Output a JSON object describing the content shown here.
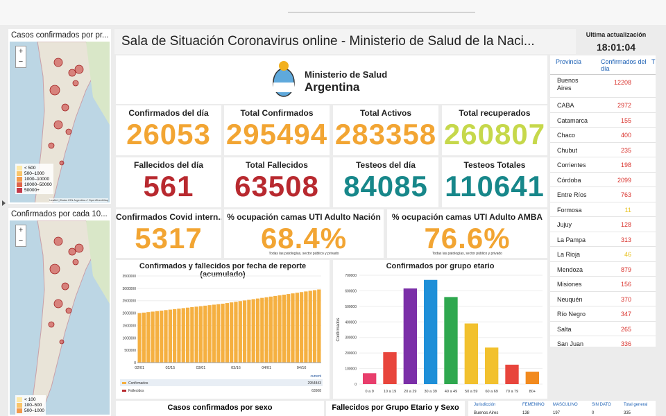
{
  "header": {
    "title": "Sala de Situación Coronavirus online - Ministerio de Salud de la Naci...",
    "update_label": "Ultima actualización",
    "update_time": "18:01:04"
  },
  "logo": {
    "line1": "Ministerio de Salud",
    "line2": "Argentina"
  },
  "kpis": [
    {
      "label": "Confirmados del día",
      "value": 26053,
      "color": "#f2a533"
    },
    {
      "label": "Total Confirmados",
      "value": 295494,
      "color": "#f2a533"
    },
    {
      "label": "Total Activos",
      "value": 283358,
      "color": "#f2a533"
    },
    {
      "label": "Total recuperados",
      "value": 260807,
      "color": "#c6d84b"
    },
    {
      "label": "Fallecidos del día",
      "value": 561,
      "color": "#b8292f"
    },
    {
      "label": "Total Fallecidos",
      "value": 63508,
      "color": "#b8292f"
    },
    {
      "label": "Testeos del día",
      "value": 84085,
      "color": "#17878a"
    },
    {
      "label": "Testeos Totales",
      "value": 110641,
      "color": "#17878a"
    }
  ],
  "kpis_row3": [
    {
      "label": "Confirmados Covid intern...",
      "value": 5317,
      "color": "#f2a533"
    },
    {
      "label": "% ocupación camas UTI Adulto Nación",
      "value": "68.4%",
      "note": "Todas las patologías, sector público y privado",
      "color": "#f2a533"
    },
    {
      "label": "% ocupación camas UTI Adulto AMBA",
      "value": "76.6%",
      "note": "Todas las patologías, sector público y privado",
      "color": "#f2a533"
    }
  ],
  "maps": [
    {
      "title": "Casos confirmados por pr...",
      "legend": [
        "< 500",
        "500–1000",
        "1000–10000",
        "10000–50000",
        "50000+"
      ],
      "attribution": "Leaflet | Datos IGN Argentina // OpenStreetMap"
    },
    {
      "title": "Confirmados por cada 10...",
      "legend": [
        "< 100",
        "100–500",
        "500–1000"
      ]
    }
  ],
  "cumulative_chart": {
    "type": "bar",
    "title": "Confirmados y fallecidos por fecha de reporte (acumulado)",
    "categories": [
      "02/01",
      null,
      null,
      null,
      null,
      null,
      null,
      "02/15",
      null,
      null,
      null,
      null,
      null,
      null,
      "03/01",
      null,
      null,
      null,
      null,
      null,
      null,
      null,
      "03/16",
      null,
      null,
      null,
      null,
      null,
      null,
      "04/01",
      null,
      null,
      null,
      null,
      null,
      null,
      null,
      "04/16",
      null,
      null,
      null,
      null
    ],
    "values": [
      2000000,
      2020000,
      2040000,
      2060000,
      2080000,
      2100000,
      2120000,
      2140000,
      2160000,
      2180000,
      2200000,
      2220000,
      2240000,
      2260000,
      2280000,
      2300000,
      2320000,
      2340000,
      2360000,
      2380000,
      2406000,
      2432000,
      2458000,
      2484000,
      2510000,
      2536000,
      2562000,
      2588000,
      2614000,
      2640000,
      2666000,
      2692000,
      2718000,
      2744000,
      2770000,
      2796000,
      2822000,
      2848000,
      2874000,
      2900000,
      2926000,
      2954000
    ],
    "color": "#f5b041",
    "ylim": [
      0,
      3500000
    ],
    "yticks": [
      0,
      500000,
      1000000,
      1500000,
      2000000,
      2500000,
      3000000,
      3500000
    ],
    "legend_header": "current",
    "legend": [
      {
        "name": "Confirmados",
        "value": 2954843,
        "color": "#f5b041"
      },
      {
        "name": "Fallecidos",
        "value": 63508,
        "color": "#b8292f"
      }
    ]
  },
  "age_chart": {
    "type": "bar",
    "title": "Confirmados por grupo etario",
    "y_label": "Confirmados",
    "categories": [
      "0 a 9",
      "10 a 19",
      "20 a 29",
      "30 a 39",
      "40 a 49",
      "50 a 59",
      "60 a 69",
      "70 a 79",
      "80+"
    ],
    "values": [
      70000,
      205000,
      615000,
      670000,
      560000,
      390000,
      235000,
      125000,
      80000
    ],
    "colors": [
      "#e83e6c",
      "#e8453c",
      "#7b2fa8",
      "#1e8fd8",
      "#2fa84f",
      "#f2c12e",
      "#f2c12e",
      "#e8453c",
      "#f28a1e"
    ],
    "ylim": [
      0,
      700000
    ],
    "yticks": [
      0,
      100000,
      200000,
      300000,
      400000,
      500000,
      600000,
      700000
    ]
  },
  "province_table": {
    "headers": [
      "Provincia",
      "Confirmados del día",
      "T"
    ],
    "rows": [
      {
        "name": "Buenos Aires",
        "value": 12208,
        "color": "#d9312b"
      },
      {
        "name": "CABA",
        "value": 2972,
        "color": "#d9312b"
      },
      {
        "name": "Catamarca",
        "value": 155,
        "color": "#d9312b"
      },
      {
        "name": "Chaco",
        "value": 400,
        "color": "#d9312b"
      },
      {
        "name": "Chubut",
        "value": 235,
        "color": "#d9312b"
      },
      {
        "name": "Corrientes",
        "value": 198,
        "color": "#d9312b"
      },
      {
        "name": "Córdoba",
        "value": 2099,
        "color": "#d9312b"
      },
      {
        "name": "Entre Ríos",
        "value": 763,
        "color": "#d9312b"
      },
      {
        "name": "Formosa",
        "value": 11,
        "color": "#e8c11e"
      },
      {
        "name": "Jujuy",
        "value": 128,
        "color": "#d9312b"
      },
      {
        "name": "La Pampa",
        "value": 313,
        "color": "#d9312b"
      },
      {
        "name": "La Rioja",
        "value": 46,
        "color": "#e8c11e"
      },
      {
        "name": "Mendoza",
        "value": 879,
        "color": "#d9312b"
      },
      {
        "name": "Misiones",
        "value": 156,
        "color": "#d9312b"
      },
      {
        "name": "Neuquén",
        "value": 370,
        "color": "#d9312b"
      },
      {
        "name": "Río Negro",
        "value": 347,
        "color": "#d9312b"
      },
      {
        "name": "Salta",
        "value": 265,
        "color": "#d9312b"
      },
      {
        "name": "San Juan",
        "value": 336,
        "color": "#d9312b"
      }
    ]
  },
  "bottom": {
    "sex_title": "Casos confirmados por sexo",
    "deaths_title": "Fallecidos por Grupo Etario y Sexo",
    "table_headers": [
      "Jurisdicción",
      "FEMENINO",
      "MASCULINO",
      "SIN DATO",
      "Total general"
    ],
    "table_row": [
      "Buenos Aires",
      138,
      197,
      0,
      335
    ]
  }
}
